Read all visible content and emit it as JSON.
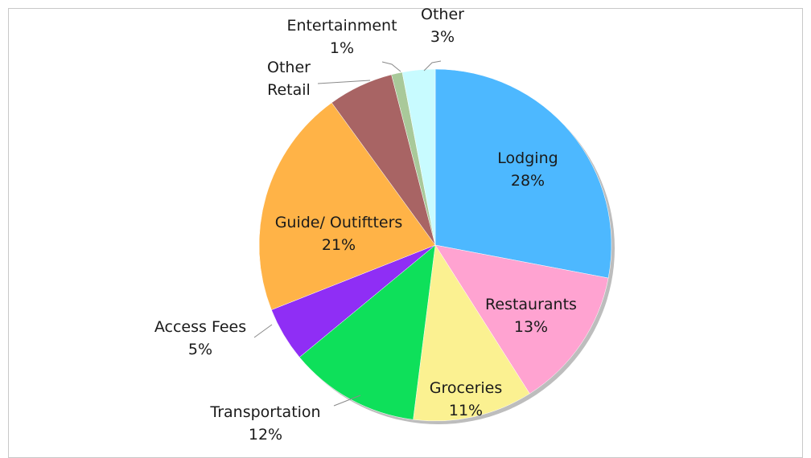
{
  "chart_data": {
    "type": "pie",
    "title": "",
    "start": "12 o'clock, clockwise",
    "slices": [
      {
        "label": "Lodging",
        "value": 28,
        "pct": "28%",
        "color": "#4db8ff"
      },
      {
        "label": "Restaurants",
        "value": 13,
        "pct": "13%",
        "color": "#ffa3d1"
      },
      {
        "label": "Groceries",
        "value": 11,
        "pct": "11%",
        "color": "#fbf191"
      },
      {
        "label": "Transportation",
        "value": 12,
        "pct": "12%",
        "color": "#0ee05a"
      },
      {
        "label": "Access Fees",
        "value": 5,
        "pct": "5%",
        "color": "#8f2ef5"
      },
      {
        "label": "Guide/ Outiftters",
        "value": 21,
        "pct": "21%",
        "color": "#ffb347"
      },
      {
        "label": "Other Retail",
        "lines": [
          "Other",
          "Retail"
        ],
        "value": 6,
        "pct": "",
        "color": "#a86464"
      },
      {
        "label": "Entertainment",
        "value": 1,
        "pct": "1%",
        "color": "#a9c99a"
      },
      {
        "label": "Other",
        "value": 3,
        "pct": "3%",
        "color": "#c8fbff"
      }
    ]
  }
}
